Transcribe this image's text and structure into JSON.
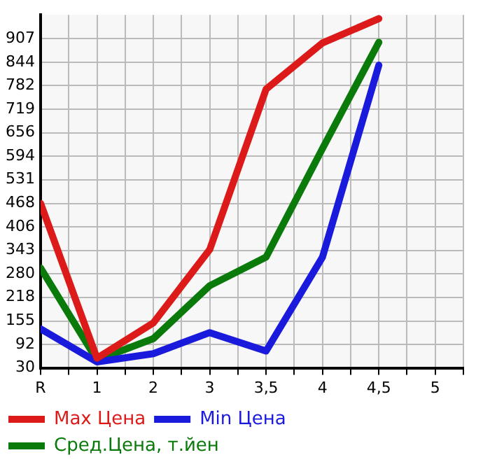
{
  "chart_data": {
    "type": "line",
    "categories": [
      "R",
      "1",
      "2",
      "3",
      "3,5",
      "4",
      "4,5",
      "5"
    ],
    "series": [
      {
        "name": "Max Цена",
        "color": "#dd1a1a",
        "values": [
          468,
          56,
          150,
          345,
          772,
          895,
          960,
          null
        ]
      },
      {
        "name": "Min Цена",
        "color": "#1a1add",
        "values": [
          134,
          46,
          68,
          124,
          75,
          325,
          836,
          null
        ]
      },
      {
        "name": "Сред.Цена, т.йен",
        "color": "#0a7a0a",
        "values": [
          296,
          51,
          108,
          249,
          325,
          614,
          897,
          null
        ]
      }
    ],
    "ylim": [
      30,
      970
    ],
    "yticks": [
      30,
      92,
      155,
      218,
      280,
      343,
      406,
      468,
      531,
      594,
      656,
      719,
      782,
      844,
      907
    ],
    "grid": true,
    "legend": "bottom",
    "marker": "none",
    "line_style": "solid"
  }
}
